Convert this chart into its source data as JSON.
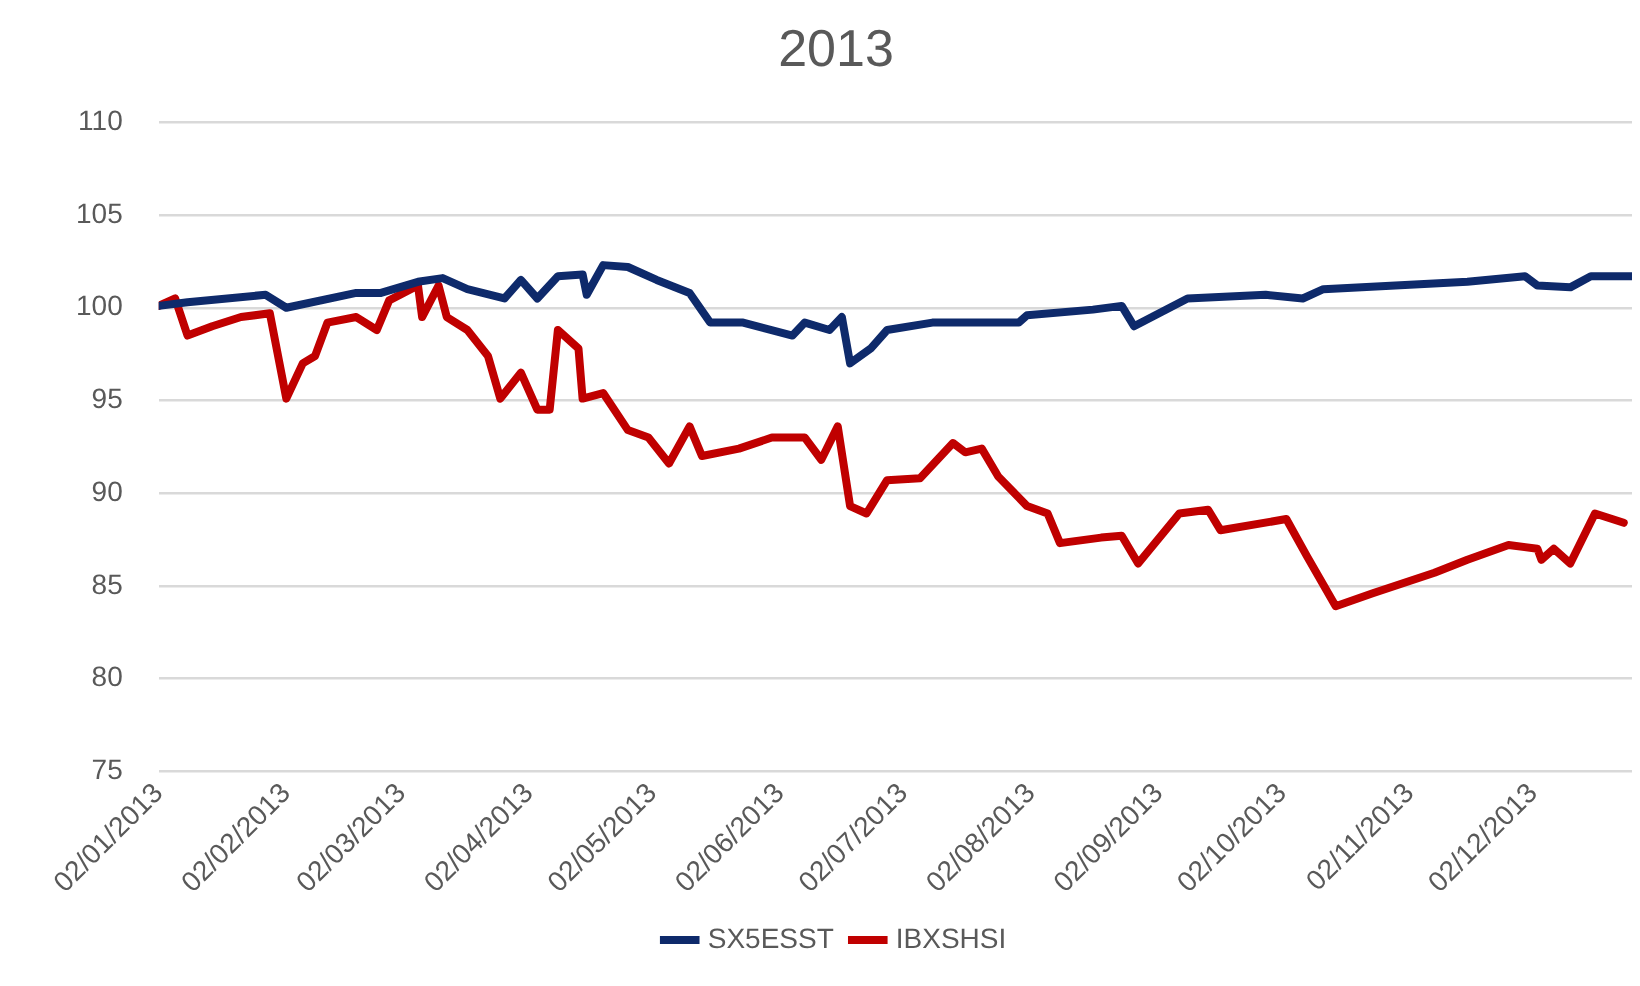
{
  "chart_data": {
    "type": "line",
    "title": "2013",
    "grid": "y",
    "legend": "bottom",
    "marker": "none",
    "xlim": [
      "2013-01-02",
      "2013-12-26"
    ],
    "xticks": [
      {
        "value": "2013-01-02",
        "label": "02/01/2013"
      },
      {
        "value": "2013-02-02",
        "label": "02/02/2013"
      },
      {
        "value": "2013-03-02",
        "label": "02/03/2013"
      },
      {
        "value": "2013-04-02",
        "label": "02/04/2013"
      },
      {
        "value": "2013-05-02",
        "label": "02/05/2013"
      },
      {
        "value": "2013-06-02",
        "label": "02/06/2013"
      },
      {
        "value": "2013-07-02",
        "label": "02/07/2013"
      },
      {
        "value": "2013-08-02",
        "label": "02/08/2013"
      },
      {
        "value": "2013-09-02",
        "label": "02/09/2013"
      },
      {
        "value": "2013-10-02",
        "label": "02/10/2013"
      },
      {
        "value": "2013-11-02",
        "label": "02/11/2013"
      },
      {
        "value": "2013-12-02",
        "label": "02/12/2013"
      }
    ],
    "ylim": [
      75,
      110
    ],
    "yticks": [
      75,
      80,
      85,
      90,
      95,
      100,
      105,
      110
    ],
    "series": [
      {
        "name": "SX5ESST",
        "color": "#0e2a6b",
        "x": [
          "2013-01-02",
          "2013-01-09",
          "2013-01-28",
          "2013-02-02",
          "2013-02-19",
          "2013-02-25",
          "2013-03-06",
          "2013-03-12",
          "2013-03-18",
          "2013-03-27",
          "2013-03-31",
          "2013-04-04",
          "2013-04-09",
          "2013-04-15",
          "2013-04-16",
          "2013-04-20",
          "2013-04-26",
          "2013-05-03",
          "2013-05-11",
          "2013-05-16",
          "2013-05-24",
          "2013-06-05",
          "2013-06-08",
          "2013-06-14",
          "2013-06-17",
          "2013-06-19",
          "2013-06-24",
          "2013-06-28",
          "2013-07-09",
          "2013-07-30",
          "2013-08-01",
          "2013-08-17",
          "2013-08-24",
          "2013-08-27",
          "2013-09-09",
          "2013-09-28",
          "2013-10-07",
          "2013-10-12",
          "2013-11-16",
          "2013-11-30",
          "2013-12-03",
          "2013-12-11",
          "2013-12-16",
          "2013-12-26"
        ],
        "values": [
          100.1,
          100.3,
          100.7,
          100,
          100.8,
          100.8,
          101.4,
          101.6,
          101,
          100.5,
          101.5,
          100.5,
          101.7,
          101.8,
          100.7,
          102.3,
          102.2,
          101.5,
          100.8,
          99.2,
          99.2,
          98.5,
          99.2,
          98.8,
          99.5,
          97,
          97.8,
          98.8,
          99.2,
          99.2,
          99.6,
          99.9,
          100.1,
          99,
          100.5,
          100.7,
          100.5,
          101,
          101.4,
          101.7,
          101.2,
          101.1,
          101.7,
          101.7
        ]
      },
      {
        "name": "IBXSHSI",
        "color": "#c00000",
        "x": [
          "2013-01-02",
          "2013-01-06",
          "2013-01-09",
          "2013-01-15",
          "2013-01-22",
          "2013-01-29",
          "2013-02-02",
          "2013-02-06",
          "2013-02-09",
          "2013-02-12",
          "2013-02-19",
          "2013-02-24",
          "2013-02-27",
          "2013-03-06",
          "2013-03-07",
          "2013-03-11",
          "2013-03-13",
          "2013-03-18",
          "2013-03-23",
          "2013-03-26",
          "2013-03-31",
          "2013-04-04",
          "2013-04-07",
          "2013-04-09",
          "2013-04-14",
          "2013-04-15",
          "2013-04-20",
          "2013-04-26",
          "2013-05-01",
          "2013-05-06",
          "2013-05-11",
          "2013-05-14",
          "2013-05-23",
          "2013-05-31",
          "2013-06-08",
          "2013-06-12",
          "2013-06-16",
          "2013-06-19",
          "2013-06-23",
          "2013-06-28",
          "2013-07-06",
          "2013-07-14",
          "2013-07-17",
          "2013-07-21",
          "2013-07-25",
          "2013-08-01",
          "2013-08-06",
          "2013-08-09",
          "2013-08-19",
          "2013-08-24",
          "2013-08-28",
          "2013-09-07",
          "2013-09-14",
          "2013-09-17",
          "2013-10-03",
          "2013-10-08",
          "2013-10-15",
          "2013-10-24",
          "2013-11-08",
          "2013-11-16",
          "2013-11-26",
          "2013-12-03",
          "2013-12-04",
          "2013-12-07",
          "2013-12-11",
          "2013-12-17",
          "2013-12-24"
        ],
        "values": [
          100.1,
          100.5,
          98.5,
          99,
          99.5,
          99.7,
          95.1,
          97,
          97.4,
          99.2,
          99.5,
          98.8,
          100.4,
          101.2,
          99.5,
          101.2,
          99.5,
          98.8,
          97.4,
          95.1,
          96.5,
          94.5,
          94.5,
          98.8,
          97.8,
          95.1,
          95.4,
          93.4,
          93,
          91.6,
          93.6,
          92,
          92.4,
          93,
          93,
          91.8,
          93.6,
          89.3,
          88.9,
          90.7,
          90.8,
          92.7,
          92.2,
          92.4,
          90.9,
          89.3,
          88.9,
          87.3,
          87.6,
          87.7,
          86.2,
          88.9,
          89.1,
          88,
          88.6,
          86.6,
          83.9,
          84.6,
          85.7,
          86.4,
          87.2,
          87,
          86.4,
          87,
          86.2,
          88.9,
          88.4
        ]
      }
    ]
  }
}
